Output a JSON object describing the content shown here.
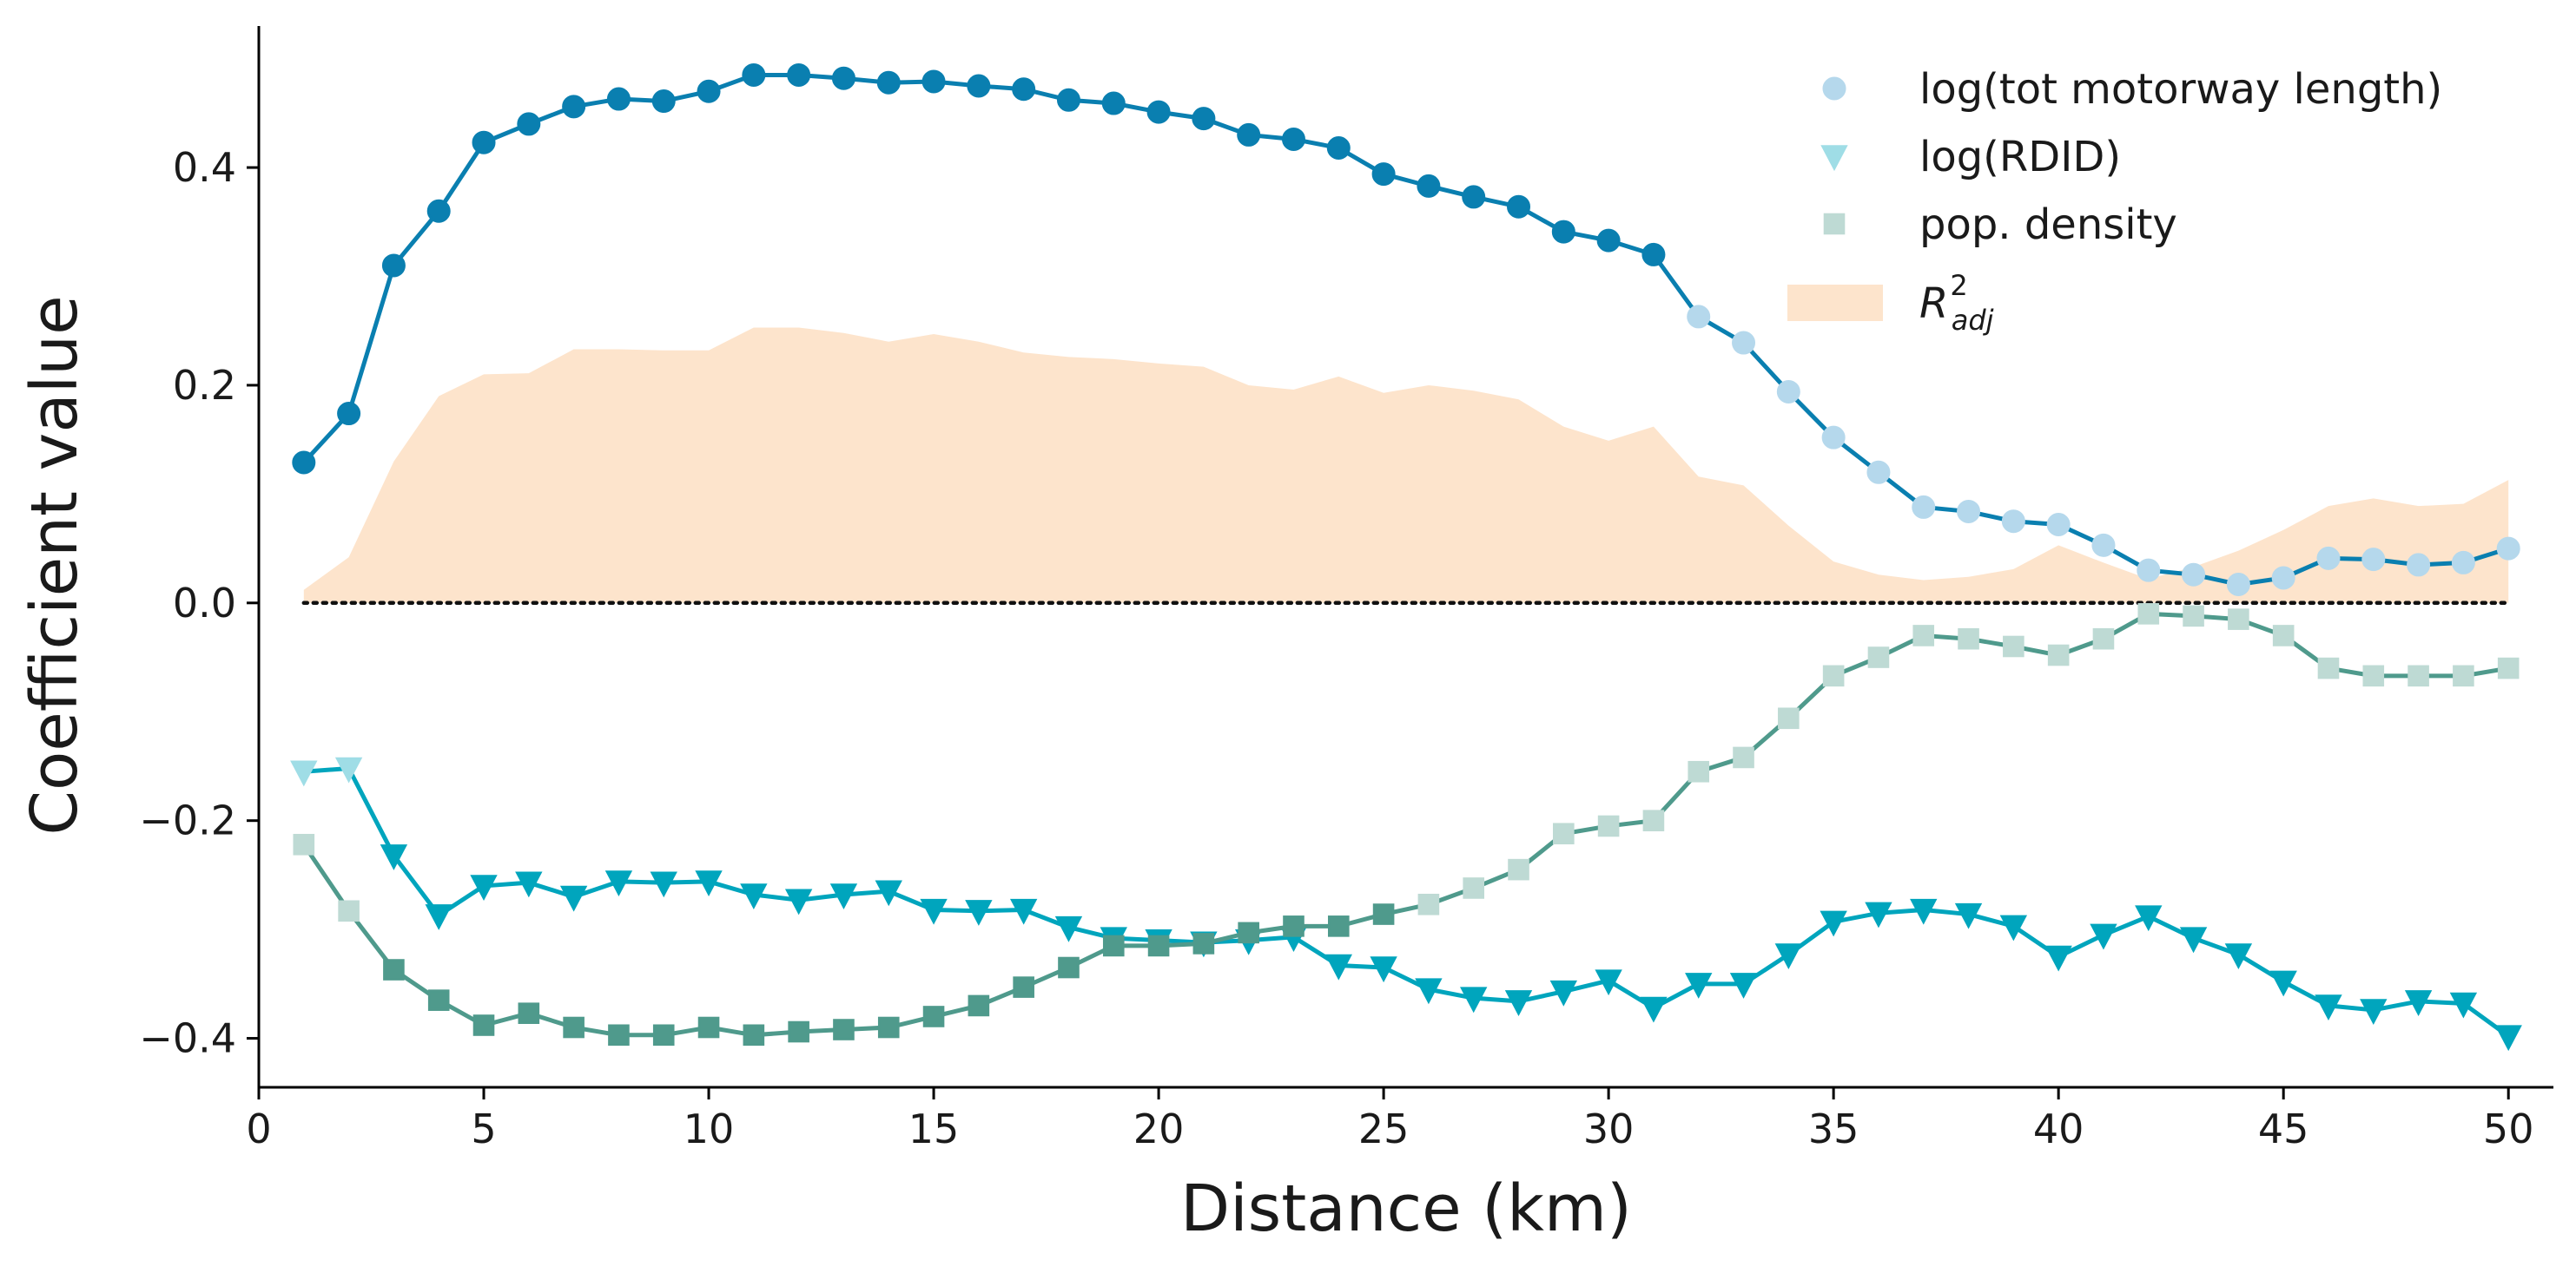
{
  "chart_data": {
    "type": "line",
    "xlabel": "Distance (km)",
    "ylabel": "Coefficient value",
    "xlim": [
      0,
      51
    ],
    "ylim": [
      -0.445,
      0.53
    ],
    "xticks": [
      0,
      5,
      10,
      15,
      20,
      25,
      30,
      35,
      40,
      45,
      50
    ],
    "yticks": [
      -0.4,
      -0.2,
      0.0,
      0.2,
      0.4
    ],
    "ytick_labels": [
      "−0.4",
      "−0.2",
      "0.0",
      "0.2",
      "0.4"
    ],
    "zero_line": "dotted",
    "grid": false,
    "legend_position": "top-right",
    "x": [
      1,
      2,
      3,
      4,
      5,
      6,
      7,
      8,
      9,
      10,
      11,
      12,
      13,
      14,
      15,
      16,
      17,
      18,
      19,
      20,
      21,
      22,
      23,
      24,
      25,
      26,
      27,
      28,
      29,
      30,
      31,
      32,
      33,
      34,
      35,
      36,
      37,
      38,
      39,
      40,
      41,
      42,
      43,
      44,
      45,
      46,
      47,
      48,
      49,
      50
    ],
    "series": [
      {
        "name": "log(tot motorway length)",
        "marker": "circle",
        "color": "#0a7fb0",
        "light_color": "#b5d8ec",
        "significant_until_x": 31,
        "values": [
          0.129,
          0.174,
          0.31,
          0.36,
          0.423,
          0.44,
          0.456,
          0.463,
          0.461,
          0.47,
          0.485,
          0.485,
          0.482,
          0.478,
          0.479,
          0.475,
          0.472,
          0.462,
          0.459,
          0.451,
          0.445,
          0.43,
          0.426,
          0.418,
          0.394,
          0.383,
          0.373,
          0.364,
          0.341,
          0.333,
          0.32,
          0.263,
          0.239,
          0.194,
          0.152,
          0.12,
          0.088,
          0.084,
          0.075,
          0.072,
          0.053,
          0.03,
          0.026,
          0.017,
          0.023,
          0.041,
          0.04,
          0.035,
          0.037,
          0.05
        ]
      },
      {
        "name": "log(RDID)",
        "marker": "triangle-down",
        "color": "#00a5bd",
        "light_color": "#9fdde6",
        "significant_from_x": 3,
        "values": [
          -0.155,
          -0.152,
          -0.232,
          -0.287,
          -0.26,
          -0.257,
          -0.27,
          -0.256,
          -0.257,
          -0.256,
          -0.268,
          -0.273,
          -0.268,
          -0.265,
          -0.282,
          -0.283,
          -0.282,
          -0.298,
          -0.308,
          -0.31,
          -0.312,
          -0.31,
          -0.307,
          -0.333,
          -0.335,
          -0.355,
          -0.363,
          -0.366,
          -0.357,
          -0.347,
          -0.372,
          -0.35,
          -0.35,
          -0.323,
          -0.293,
          -0.285,
          -0.282,
          -0.286,
          -0.297,
          -0.325,
          -0.305,
          -0.288,
          -0.308,
          -0.323,
          -0.348,
          -0.37,
          -0.374,
          -0.366,
          -0.368,
          -0.398
        ]
      },
      {
        "name": "pop. density",
        "marker": "square",
        "color": "#4f9a8c",
        "light_color": "#bedad4",
        "significant_range_x": [
          3,
          25
        ],
        "values": [
          -0.222,
          -0.283,
          -0.337,
          -0.365,
          -0.388,
          -0.377,
          -0.39,
          -0.397,
          -0.397,
          -0.39,
          -0.397,
          -0.394,
          -0.392,
          -0.39,
          -0.38,
          -0.37,
          -0.353,
          -0.335,
          -0.315,
          -0.315,
          -0.313,
          -0.303,
          -0.297,
          -0.297,
          -0.286,
          -0.277,
          -0.262,
          -0.245,
          -0.212,
          -0.205,
          -0.2,
          -0.155,
          -0.142,
          -0.106,
          -0.067,
          -0.05,
          -0.03,
          -0.033,
          -0.04,
          -0.048,
          -0.033,
          -0.01,
          -0.012,
          -0.015,
          -0.03,
          -0.06,
          -0.067,
          -0.067,
          -0.067,
          -0.06
        ]
      }
    ],
    "area": {
      "name": "R_adj^2",
      "legend_base": "R",
      "legend_sup": "2",
      "legend_sub": "adj",
      "color": "#fde4cc",
      "values": [
        0.012,
        0.042,
        0.13,
        0.19,
        0.21,
        0.211,
        0.233,
        0.233,
        0.232,
        0.232,
        0.253,
        0.253,
        0.248,
        0.24,
        0.247,
        0.24,
        0.23,
        0.226,
        0.224,
        0.22,
        0.217,
        0.2,
        0.196,
        0.208,
        0.193,
        0.2,
        0.195,
        0.187,
        0.162,
        0.149,
        0.162,
        0.116,
        0.108,
        0.071,
        0.038,
        0.026,
        0.021,
        0.024,
        0.031,
        0.053,
        0.037,
        0.022,
        0.033,
        0.048,
        0.067,
        0.089,
        0.096,
        0.089,
        0.091,
        0.113
      ]
    }
  }
}
